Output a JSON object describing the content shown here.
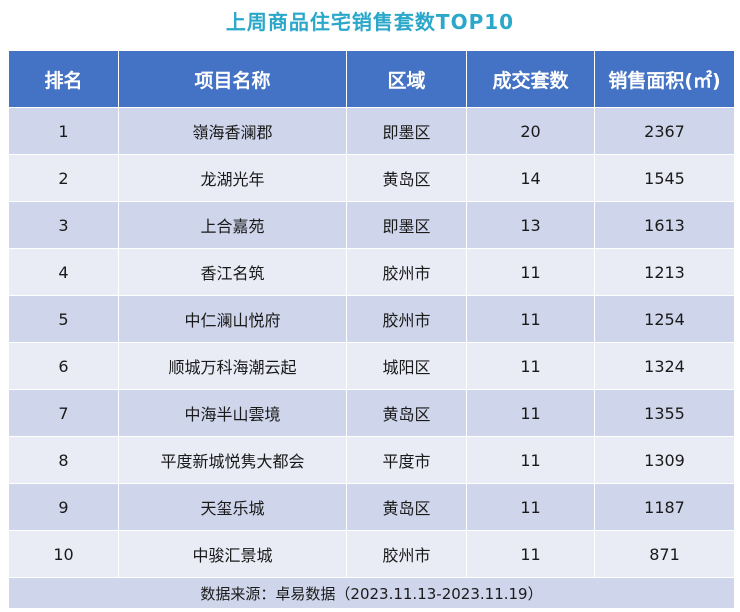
{
  "chart_data": {
    "type": "table",
    "title": "上周商品住宅销售套数TOP10",
    "columns": [
      "排名",
      "项目名称",
      "区域",
      "成交套数",
      "销售面积(㎡)"
    ],
    "rows": [
      {
        "rank": "1",
        "name": "嶺海香澜郡",
        "district": "即墨区",
        "units": "20",
        "area": "2367"
      },
      {
        "rank": "2",
        "name": "龙湖光年",
        "district": "黄岛区",
        "units": "14",
        "area": "1545"
      },
      {
        "rank": "3",
        "name": "上合嘉苑",
        "district": "即墨区",
        "units": "13",
        "area": "1613"
      },
      {
        "rank": "4",
        "name": "香江名筑",
        "district": "胶州市",
        "units": "11",
        "area": "1213"
      },
      {
        "rank": "5",
        "name": "中仁澜山悦府",
        "district": "胶州市",
        "units": "11",
        "area": "1254"
      },
      {
        "rank": "6",
        "name": "顺城万科海潮云起",
        "district": "城阳区",
        "units": "11",
        "area": "1324"
      },
      {
        "rank": "7",
        "name": "中海半山雲境",
        "district": "黄岛区",
        "units": "11",
        "area": "1355"
      },
      {
        "rank": "8",
        "name": "平度新城悦隽大都会",
        "district": "平度市",
        "units": "11",
        "area": "1309"
      },
      {
        "rank": "9",
        "name": "天玺乐城",
        "district": "黄岛区",
        "units": "11",
        "area": "1187"
      },
      {
        "rank": "10",
        "name": "中骏汇景城",
        "district": "胶州市",
        "units": "11",
        "area": "871"
      }
    ],
    "source": "数据来源：卓易数据（2023.11.13-2023.11.19）"
  },
  "colors": {
    "title": "#2aa7c9",
    "header_bg": "#4472c4",
    "row_dark": "#cfd5ea",
    "row_light": "#e9ebf5"
  }
}
